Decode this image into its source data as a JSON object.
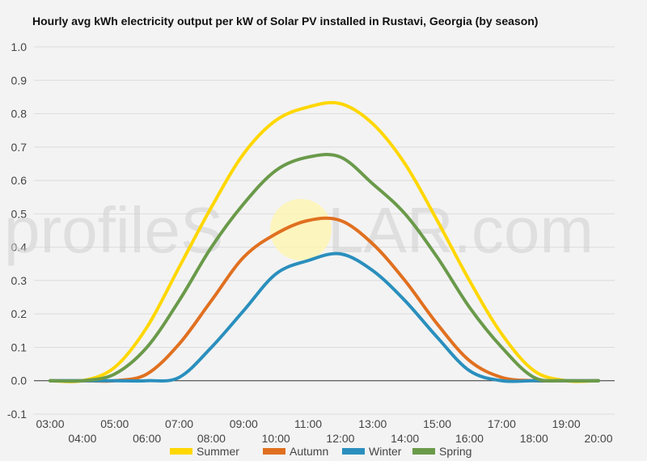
{
  "chart_data": {
    "type": "line",
    "title": "Hourly avg kWh electricity output per kW of Solar PV installed in Rustavi, Georgia (by season)",
    "xlabel": "",
    "ylabel": "",
    "ylim": [
      -0.1,
      1.0
    ],
    "yticks": [
      "-0.1",
      "0.0",
      "0.1",
      "0.2",
      "0.3",
      "0.4",
      "0.5",
      "0.6",
      "0.7",
      "0.8",
      "0.9",
      "1.0"
    ],
    "x": [
      "03:00",
      "04:00",
      "05:00",
      "06:00",
      "07:00",
      "08:00",
      "09:00",
      "10:00",
      "11:00",
      "12:00",
      "13:00",
      "14:00",
      "15:00",
      "16:00",
      "17:00",
      "18:00",
      "19:00",
      "20:00"
    ],
    "grid": true,
    "legend_position": "bottom",
    "series": [
      {
        "name": "Summer",
        "color": "#ffd700",
        "values": [
          0.0,
          0.0,
          0.04,
          0.16,
          0.34,
          0.52,
          0.68,
          0.78,
          0.82,
          0.83,
          0.77,
          0.65,
          0.48,
          0.3,
          0.14,
          0.03,
          0.0,
          0.0
        ]
      },
      {
        "name": "Autumn",
        "color": "#e07020",
        "values": [
          0.0,
          0.0,
          0.0,
          0.02,
          0.11,
          0.24,
          0.37,
          0.44,
          0.48,
          0.48,
          0.41,
          0.3,
          0.17,
          0.06,
          0.01,
          0.0,
          0.0,
          0.0
        ]
      },
      {
        "name": "Winter",
        "color": "#2a8fbd",
        "values": [
          0.0,
          0.0,
          0.0,
          0.0,
          0.01,
          0.1,
          0.21,
          0.32,
          0.36,
          0.38,
          0.33,
          0.24,
          0.13,
          0.03,
          0.0,
          0.0,
          0.0,
          0.0
        ]
      },
      {
        "name": "Spring",
        "color": "#6a9a4a",
        "values": [
          0.0,
          0.0,
          0.02,
          0.1,
          0.24,
          0.4,
          0.53,
          0.63,
          0.67,
          0.67,
          0.59,
          0.5,
          0.37,
          0.22,
          0.1,
          0.01,
          0.0,
          0.0
        ]
      }
    ]
  },
  "watermark": {
    "prefix": "profileS",
    "suffix": "LAR.com",
    "sun_color": "#fff5b0"
  }
}
